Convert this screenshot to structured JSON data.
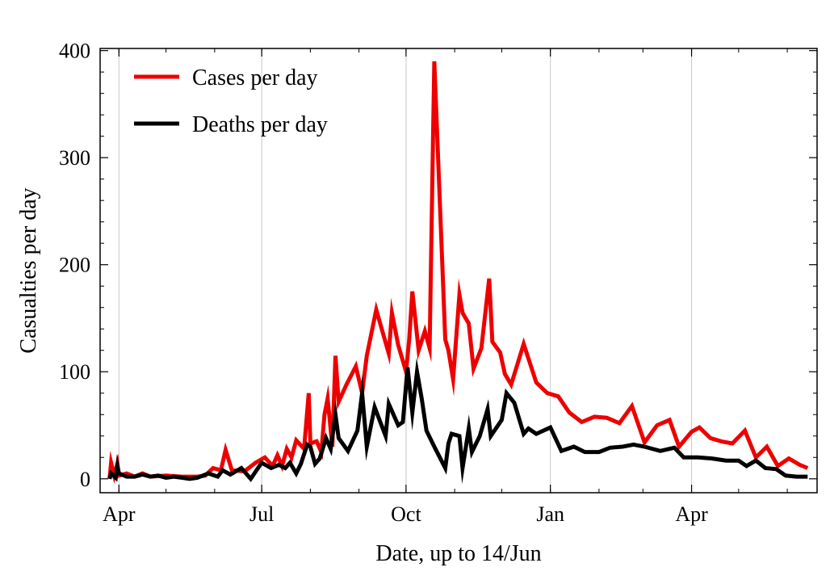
{
  "chart_data": {
    "type": "line",
    "title": "",
    "xlabel": "Date, up to 14/Jun",
    "ylabel": "Casualties per day",
    "ylim": [
      -13,
      402
    ],
    "xlim": [
      "2020-03-20",
      "2021-06-20"
    ],
    "yticks": [
      0,
      100,
      200,
      300,
      400
    ],
    "xticks": [
      {
        "date": "2020-04-01",
        "label": "Apr"
      },
      {
        "date": "2020-07-01",
        "label": "Jul"
      },
      {
        "date": "2020-10-01",
        "label": "Oct"
      },
      {
        "date": "2021-01-01",
        "label": "Jan"
      },
      {
        "date": "2021-04-01",
        "label": "Apr"
      }
    ],
    "grid": "vertical lines at x ticks",
    "legend_position": "top-left",
    "series": [
      {
        "name": "Cases per day",
        "color": "#ee0000",
        "points": [
          [
            "2020-03-26",
            0
          ],
          [
            "2020-03-27",
            15
          ],
          [
            "2020-03-29",
            3
          ],
          [
            "2020-03-31",
            14
          ],
          [
            "2020-04-01",
            3
          ],
          [
            "2020-04-06",
            5
          ],
          [
            "2020-04-11",
            2
          ],
          [
            "2020-04-16",
            5
          ],
          [
            "2020-04-21",
            2
          ],
          [
            "2020-05-01",
            3
          ],
          [
            "2020-05-11",
            2
          ],
          [
            "2020-05-21",
            2
          ],
          [
            "2020-05-26",
            3
          ],
          [
            "2020-05-31",
            10
          ],
          [
            "2020-06-05",
            8
          ],
          [
            "2020-06-08",
            27
          ],
          [
            "2020-06-12",
            8
          ],
          [
            "2020-06-20",
            7
          ],
          [
            "2020-06-27",
            15
          ],
          [
            "2020-07-03",
            20
          ],
          [
            "2020-07-08",
            12
          ],
          [
            "2020-07-11",
            22
          ],
          [
            "2020-07-14",
            12
          ],
          [
            "2020-07-17",
            28
          ],
          [
            "2020-07-20",
            20
          ],
          [
            "2020-07-23",
            36
          ],
          [
            "2020-07-28",
            28
          ],
          [
            "2020-07-31",
            80
          ],
          [
            "2020-08-01",
            33
          ],
          [
            "2020-08-05",
            35
          ],
          [
            "2020-08-08",
            25
          ],
          [
            "2020-08-10",
            60
          ],
          [
            "2020-08-12",
            75
          ],
          [
            "2020-08-15",
            30
          ],
          [
            "2020-08-17",
            115
          ],
          [
            "2020-08-19",
            72
          ],
          [
            "2020-08-24",
            88
          ],
          [
            "2020-08-30",
            105
          ],
          [
            "2020-09-03",
            80
          ],
          [
            "2020-09-06",
            115
          ],
          [
            "2020-09-12",
            158
          ],
          [
            "2020-09-20",
            117
          ],
          [
            "2020-09-22",
            155
          ],
          [
            "2020-09-26",
            125
          ],
          [
            "2020-10-01",
            100
          ],
          [
            "2020-10-03",
            130
          ],
          [
            "2020-10-05",
            175
          ],
          [
            "2020-10-09",
            120
          ],
          [
            "2020-10-13",
            138
          ],
          [
            "2020-10-16",
            122
          ],
          [
            "2020-10-19",
            390
          ],
          [
            "2020-10-26",
            130
          ],
          [
            "2020-10-28",
            120
          ],
          [
            "2020-10-31",
            93
          ],
          [
            "2020-11-04",
            172
          ],
          [
            "2020-11-06",
            155
          ],
          [
            "2020-11-10",
            145
          ],
          [
            "2020-11-13",
            103
          ],
          [
            "2020-11-18",
            122
          ],
          [
            "2020-11-23",
            187
          ],
          [
            "2020-11-25",
            128
          ],
          [
            "2020-11-30",
            118
          ],
          [
            "2020-12-03",
            98
          ],
          [
            "2020-12-07",
            88
          ],
          [
            "2020-12-15",
            126
          ],
          [
            "2020-12-23",
            90
          ],
          [
            "2020-12-30",
            80
          ],
          [
            "2021-01-06",
            77
          ],
          [
            "2021-01-13",
            62
          ],
          [
            "2021-01-21",
            53
          ],
          [
            "2021-01-29",
            58
          ],
          [
            "2021-02-06",
            57
          ],
          [
            "2021-02-14",
            52
          ],
          [
            "2021-02-22",
            68
          ],
          [
            "2021-03-02",
            34
          ],
          [
            "2021-03-10",
            50
          ],
          [
            "2021-03-18",
            55
          ],
          [
            "2021-03-24",
            30
          ],
          [
            "2021-04-01",
            44
          ],
          [
            "2021-04-06",
            48
          ],
          [
            "2021-04-13",
            38
          ],
          [
            "2021-04-20",
            35
          ],
          [
            "2021-04-27",
            33
          ],
          [
            "2021-05-05",
            45
          ],
          [
            "2021-05-12",
            20
          ],
          [
            "2021-05-19",
            30
          ],
          [
            "2021-05-26",
            12
          ],
          [
            "2021-06-02",
            19
          ],
          [
            "2021-06-09",
            13
          ],
          [
            "2021-06-14",
            10
          ]
        ]
      },
      {
        "name": "Deaths per day",
        "color": "#000000",
        "points": [
          [
            "2020-03-26",
            0
          ],
          [
            "2020-03-27",
            5
          ],
          [
            "2020-03-30",
            1
          ],
          [
            "2020-03-31",
            12
          ],
          [
            "2020-04-01",
            5
          ],
          [
            "2020-04-06",
            2
          ],
          [
            "2020-04-11",
            2
          ],
          [
            "2020-04-16",
            4
          ],
          [
            "2020-04-21",
            2
          ],
          [
            "2020-04-26",
            3
          ],
          [
            "2020-05-01",
            1
          ],
          [
            "2020-05-06",
            2
          ],
          [
            "2020-05-11",
            1
          ],
          [
            "2020-05-16",
            0
          ],
          [
            "2020-05-21",
            1
          ],
          [
            "2020-05-28",
            5
          ],
          [
            "2020-06-03",
            2
          ],
          [
            "2020-06-06",
            8
          ],
          [
            "2020-06-11",
            4
          ],
          [
            "2020-06-18",
            10
          ],
          [
            "2020-06-24",
            0
          ],
          [
            "2020-07-01",
            15
          ],
          [
            "2020-07-07",
            10
          ],
          [
            "2020-07-12",
            13
          ],
          [
            "2020-07-16",
            10
          ],
          [
            "2020-07-19",
            15
          ],
          [
            "2020-07-23",
            5
          ],
          [
            "2020-07-26",
            14
          ],
          [
            "2020-07-30",
            32
          ],
          [
            "2020-08-01",
            30
          ],
          [
            "2020-08-04",
            14
          ],
          [
            "2020-08-07",
            19
          ],
          [
            "2020-08-11",
            38
          ],
          [
            "2020-08-14",
            28
          ],
          [
            "2020-08-17",
            60
          ],
          [
            "2020-08-19",
            38
          ],
          [
            "2020-08-25",
            26
          ],
          [
            "2020-08-31",
            45
          ],
          [
            "2020-09-03",
            80
          ],
          [
            "2020-09-06",
            30
          ],
          [
            "2020-09-11",
            67
          ],
          [
            "2020-09-18",
            40
          ],
          [
            "2020-09-20",
            70
          ],
          [
            "2020-09-26",
            50
          ],
          [
            "2020-09-29",
            53
          ],
          [
            "2020-10-02",
            104
          ],
          [
            "2020-10-05",
            62
          ],
          [
            "2020-10-08",
            100
          ],
          [
            "2020-10-11",
            75
          ],
          [
            "2020-10-14",
            45
          ],
          [
            "2020-10-19",
            30
          ],
          [
            "2020-10-26",
            10
          ],
          [
            "2020-10-28",
            33
          ],
          [
            "2020-10-30",
            42
          ],
          [
            "2020-11-04",
            40
          ],
          [
            "2020-11-06",
            10
          ],
          [
            "2020-11-10",
            47
          ],
          [
            "2020-11-12",
            25
          ],
          [
            "2020-11-17",
            40
          ],
          [
            "2020-11-22",
            65
          ],
          [
            "2020-11-24",
            40
          ],
          [
            "2020-12-01",
            55
          ],
          [
            "2020-12-04",
            80
          ],
          [
            "2020-12-09",
            71
          ],
          [
            "2020-12-15",
            42
          ],
          [
            "2020-12-18",
            47
          ],
          [
            "2020-12-23",
            42
          ],
          [
            "2021-01-01",
            48
          ],
          [
            "2021-01-08",
            26
          ],
          [
            "2021-01-16",
            30
          ],
          [
            "2021-01-23",
            25
          ],
          [
            "2021-02-01",
            25
          ],
          [
            "2021-02-08",
            29
          ],
          [
            "2021-02-16",
            30
          ],
          [
            "2021-02-23",
            32
          ],
          [
            "2021-03-02",
            30
          ],
          [
            "2021-03-12",
            26
          ],
          [
            "2021-03-21",
            29
          ],
          [
            "2021-03-27",
            20
          ],
          [
            "2021-04-05",
            20
          ],
          [
            "2021-04-14",
            19
          ],
          [
            "2021-04-23",
            17
          ],
          [
            "2021-05-01",
            17
          ],
          [
            "2021-05-06",
            12
          ],
          [
            "2021-05-12",
            17
          ],
          [
            "2021-05-18",
            10
          ],
          [
            "2021-05-25",
            9
          ],
          [
            "2021-05-31",
            3
          ],
          [
            "2021-06-07",
            2
          ],
          [
            "2021-06-14",
            2
          ]
        ]
      }
    ]
  }
}
